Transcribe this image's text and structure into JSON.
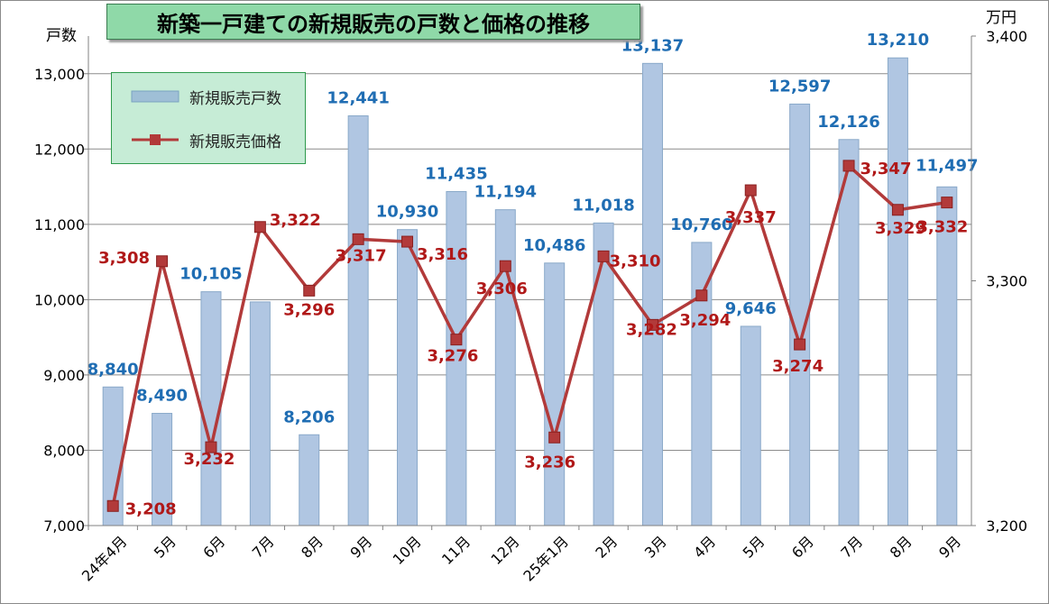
{
  "chart_data": {
    "type": "bar+line",
    "title": "新築一戸建ての新規販売の戸数と価格の推移",
    "categories": [
      "24年4月",
      "5月",
      "6月",
      "7月",
      "8月",
      "9月",
      "10月",
      "11月",
      "12月",
      "25年1月",
      "2月",
      "3月",
      "4月",
      "5月",
      "6月",
      "7月",
      "8月",
      "9月"
    ],
    "left_axis": {
      "unit_label": "戸数",
      "min": 7000,
      "max": 13500,
      "ticks": [
        "7,000",
        "8,000",
        "9,000",
        "10,000",
        "11,000",
        "12,000",
        "13,000"
      ]
    },
    "right_axis": {
      "unit_label": "万円",
      "min": 3200,
      "max": 3400,
      "ticks": [
        "3,200",
        "3,300",
        "3,400"
      ]
    },
    "series": [
      {
        "name": "新規販売戸数",
        "kind": "bar",
        "axis": "left",
        "color": "#b0c6e2",
        "label_color": "#1f6db3",
        "values": [
          8840,
          8490,
          10105,
          9970,
          8206,
          12441,
          10930,
          11435,
          11194,
          10486,
          11018,
          13137,
          10760,
          9646,
          12597,
          12126,
          13210,
          11497
        ],
        "labels": [
          "8,840",
          "8,490",
          "10,105",
          "",
          "8,206",
          "12,441",
          "10,930",
          "11,435",
          "11,194",
          "10,486",
          "11,018",
          "13,137",
          "10,760",
          "9,646",
          "12,597",
          "12,126",
          "13,210",
          "11,497"
        ]
      },
      {
        "name": "新規販売価格",
        "kind": "line",
        "axis": "right",
        "color": "#b23a3a",
        "label_color": "#b01818",
        "values": [
          3208,
          3308,
          3232,
          3322,
          3296,
          3317,
          3316,
          3276,
          3306,
          3236,
          3310,
          3282,
          3294,
          3337,
          3274,
          3347,
          3329,
          3332
        ],
        "labels": [
          "3,208",
          "3,308",
          "3,232",
          "3,322",
          "3,296",
          "3,317",
          "3,316",
          "3,276",
          "3,306",
          "3,236",
          "3,310",
          "3,282",
          "3,294",
          "3,337",
          "3,274",
          "3,347",
          "3,329",
          "3,332"
        ]
      }
    ],
    "grid": true,
    "legend": "top-left"
  }
}
